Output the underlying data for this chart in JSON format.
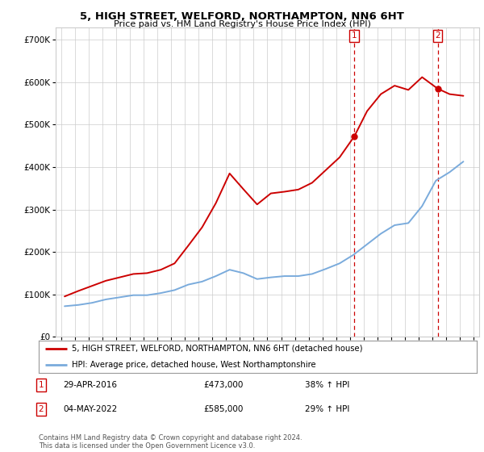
{
  "title": "5, HIGH STREET, WELFORD, NORTHAMPTON, NN6 6HT",
  "subtitle": "Price paid vs. HM Land Registry's House Price Index (HPI)",
  "legend_label_red": "5, HIGH STREET, WELFORD, NORTHAMPTON, NN6 6HT (detached house)",
  "legend_label_blue": "HPI: Average price, detached house, West Northamptonshire",
  "footnote": "Contains HM Land Registry data © Crown copyright and database right 2024.\nThis data is licensed under the Open Government Licence v3.0.",
  "point1_label": "29-APR-2016",
  "point1_price": "£473,000",
  "point1_hpi": "38% ↑ HPI",
  "point2_label": "04-MAY-2022",
  "point2_price": "£585,000",
  "point2_hpi": "29% ↑ HPI",
  "red_color": "#cc0000",
  "blue_color": "#7aabdc",
  "dashed_color": "#cc0000",
  "grid_color": "#cccccc",
  "background_color": "#ffffff",
  "ylim": [
    0,
    730000
  ],
  "yticks": [
    0,
    100000,
    200000,
    300000,
    400000,
    500000,
    600000,
    700000
  ],
  "ytick_labels": [
    "£0",
    "£100K",
    "£200K",
    "£300K",
    "£400K",
    "£500K",
    "£600K",
    "£700K"
  ],
  "red_x": [
    1995.25,
    1996.25,
    1997.25,
    1998.25,
    1999.25,
    2000.25,
    2001.25,
    2002.25,
    2003.25,
    2004.25,
    2005.25,
    2006.25,
    2007.25,
    2008.25,
    2009.25,
    2010.25,
    2011.25,
    2012.25,
    2013.25,
    2014.25,
    2015.25,
    2016.33,
    2017.25,
    2018.25,
    2019.25,
    2020.25,
    2021.25,
    2022.38,
    2023.25,
    2024.25
  ],
  "red_y": [
    95000,
    108000,
    120000,
    132000,
    140000,
    148000,
    150000,
    158000,
    173000,
    215000,
    258000,
    315000,
    385000,
    348000,
    312000,
    338000,
    342000,
    347000,
    363000,
    393000,
    423000,
    473000,
    532000,
    572000,
    592000,
    582000,
    612000,
    585000,
    572000,
    568000
  ],
  "blue_x": [
    1995.25,
    1996.25,
    1997.25,
    1998.25,
    1999.25,
    2000.25,
    2001.25,
    2002.25,
    2003.25,
    2004.25,
    2005.25,
    2006.25,
    2007.25,
    2008.25,
    2009.25,
    2010.25,
    2011.25,
    2012.25,
    2013.25,
    2014.25,
    2015.25,
    2016.25,
    2017.25,
    2018.25,
    2019.25,
    2020.25,
    2021.25,
    2022.25,
    2023.25,
    2024.25
  ],
  "blue_y": [
    72000,
    75000,
    80000,
    88000,
    93000,
    98000,
    98000,
    103000,
    110000,
    123000,
    130000,
    143000,
    158000,
    150000,
    136000,
    140000,
    143000,
    143000,
    148000,
    160000,
    173000,
    193000,
    218000,
    243000,
    263000,
    268000,
    308000,
    368000,
    388000,
    413000
  ],
  "point1_x": 2016.33,
  "point1_y": 473000,
  "point2_x": 2022.38,
  "point2_y": 585000,
  "xticks": [
    1995,
    1996,
    1997,
    1998,
    1999,
    2000,
    2001,
    2002,
    2003,
    2004,
    2005,
    2006,
    2007,
    2008,
    2009,
    2010,
    2011,
    2012,
    2013,
    2014,
    2015,
    2016,
    2017,
    2018,
    2019,
    2020,
    2021,
    2022,
    2023,
    2024,
    2025
  ],
  "xlim": [
    1994.6,
    2025.4
  ]
}
